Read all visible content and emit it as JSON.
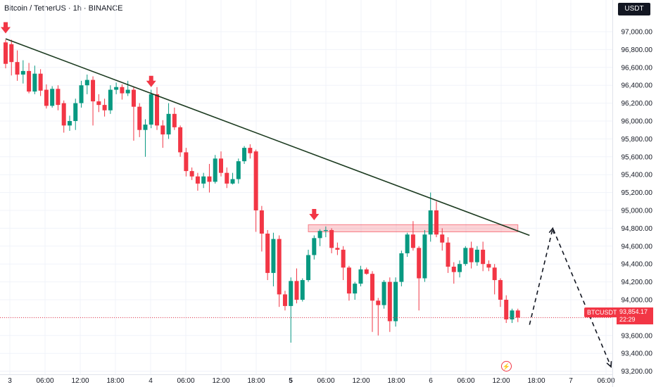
{
  "header": {
    "title": "Bitcoin / TetherUS · 1h · BINANCE"
  },
  "currency_badge": "USDT",
  "last_price": {
    "symbol": "BTCUSDT",
    "price": "93,854.17",
    "countdown": "22:29"
  },
  "colors": {
    "up": "#089981",
    "down": "#f23645",
    "trendline": "#1b3a1f",
    "zone": "#f23645",
    "text": "#131722"
  },
  "icons": [
    "down-arrow-marker-icon",
    "flash-icon"
  ],
  "chart_data": {
    "type": "candlestick",
    "title": "Bitcoin / TetherUS · 1h · BINANCE",
    "ylim": [
      93200,
      97100
    ],
    "y_ticks": [
      "97,000.00",
      "96,800.00",
      "96,600.00",
      "96,400.00",
      "96,200.00",
      "96,000.00",
      "95,800.00",
      "95,600.00",
      "95,400.00",
      "95,200.00",
      "95,000.00",
      "94,800.00",
      "94,600.00",
      "94,400.00",
      "94,200.00",
      "94,000.00",
      "93,800.00",
      "93,600.00",
      "93,400.00",
      "93,200.00"
    ],
    "x_ticks": [
      "3",
      "06:00",
      "12:00",
      "18:00",
      "4",
      "06:00",
      "12:00",
      "18:00",
      "5",
      "06:00",
      "12:00",
      "18:00",
      "6",
      "06:00",
      "12:00",
      "18:00",
      "7",
      "06:00"
    ],
    "x_ticks_bold": [
      "5"
    ],
    "grid": true,
    "candles": [
      [
        96880,
        96640,
        96910,
        96590
      ],
      [
        96860,
        96660,
        96910,
        96510
      ],
      [
        96660,
        96520,
        96790,
        96450
      ],
      [
        96520,
        96560,
        96680,
        96420
      ],
      [
        96560,
        96330,
        96650,
        96310
      ],
      [
        96330,
        96530,
        96620,
        96300
      ],
      [
        96530,
        96340,
        96580,
        96280
      ],
      [
        96350,
        96170,
        96410,
        96140
      ],
      [
        96170,
        96360,
        96390,
        96150
      ],
      [
        96360,
        96180,
        96400,
        96120
      ],
      [
        96200,
        95950,
        96230,
        95870
      ],
      [
        95950,
        96000,
        96060,
        95890
      ],
      [
        96000,
        96200,
        96250,
        95900
      ],
      [
        96200,
        96400,
        96450,
        96150
      ],
      [
        96400,
        96460,
        96520,
        96300
      ],
      [
        96460,
        96220,
        96500,
        95950
      ],
      [
        96220,
        96180,
        96300,
        96100
      ],
      [
        96180,
        96120,
        96250,
        96050
      ],
      [
        96120,
        96350,
        96400,
        96080
      ],
      [
        96350,
        96380,
        96430,
        96300
      ],
      [
        96380,
        96310,
        96410,
        96240
      ],
      [
        96310,
        96350,
        96450,
        96280
      ],
      [
        96350,
        96160,
        96380,
        95780
      ],
      [
        96160,
        95900,
        96200,
        95820
      ],
      [
        95900,
        95960,
        96020,
        95600
      ],
      [
        95960,
        96300,
        96350,
        95920
      ],
      [
        96300,
        95950,
        96380,
        95900
      ],
      [
        95950,
        95850,
        96010,
        95700
      ],
      [
        95850,
        96080,
        96200,
        95800
      ],
      [
        96080,
        95930,
        96150,
        95900
      ],
      [
        95930,
        95650,
        95950,
        95600
      ],
      [
        95650,
        95440,
        95700,
        95380
      ],
      [
        95440,
        95380,
        95480,
        95340
      ],
      [
        95380,
        95300,
        95420,
        95220
      ],
      [
        95300,
        95380,
        95420,
        95250
      ],
      [
        95380,
        95320,
        95520,
        95200
      ],
      [
        95320,
        95580,
        95620,
        95300
      ],
      [
        95580,
        95420,
        95660,
        95380
      ],
      [
        95420,
        95300,
        95480,
        95250
      ],
      [
        95300,
        95350,
        95420,
        95290
      ],
      [
        95350,
        95550,
        95580,
        95300
      ],
      [
        95550,
        95700,
        95720,
        95520
      ],
      [
        95700,
        95640,
        95740,
        95580
      ],
      [
        95660,
        95000,
        95680,
        94760
      ],
      [
        95000,
        94740,
        95050,
        94540
      ],
      [
        94740,
        94300,
        94780,
        94220
      ],
      [
        94300,
        94680,
        94750,
        94150
      ],
      [
        94680,
        94060,
        94720,
        93920
      ],
      [
        94060,
        93930,
        94100,
        93880
      ],
      [
        93930,
        94210,
        94250,
        93520
      ],
      [
        94210,
        94000,
        94350,
        93960
      ],
      [
        94000,
        94220,
        94240,
        93980
      ],
      [
        94220,
        94500,
        94560,
        94200
      ],
      [
        94500,
        94690,
        94720,
        94450
      ],
      [
        94690,
        94770,
        94790,
        94600
      ],
      [
        94770,
        94780,
        94820,
        94700
      ],
      [
        94780,
        94580,
        94800,
        94520
      ],
      [
        94580,
        94560,
        94640,
        94500
      ],
      [
        94560,
        94360,
        94600,
        94220
      ],
      [
        94360,
        94070,
        94380,
        93990
      ],
      [
        94070,
        94180,
        94200,
        94000
      ],
      [
        94180,
        94340,
        94380,
        94150
      ],
      [
        94340,
        94290,
        94360,
        94280
      ],
      [
        94290,
        93990,
        94320,
        93640
      ],
      [
        93990,
        93940,
        94020,
        93600
      ],
      [
        93940,
        94200,
        94220,
        93900
      ],
      [
        94200,
        93760,
        94250,
        93640
      ],
      [
        93760,
        94200,
        94250,
        93700
      ],
      [
        94200,
        94520,
        94550,
        94150
      ],
      [
        94520,
        94730,
        94750,
        94480
      ],
      [
        94730,
        94580,
        94880,
        94550
      ],
      [
        94580,
        94240,
        94600,
        93880
      ],
      [
        94240,
        94730,
        94780,
        94200
      ],
      [
        94730,
        95000,
        95200,
        94650
      ],
      [
        95000,
        94730,
        95100,
        94700
      ],
      [
        94730,
        94640,
        94800,
        94550
      ],
      [
        94640,
        94370,
        94700,
        94300
      ],
      [
        94370,
        94310,
        94420,
        94180
      ],
      [
        94310,
        94400,
        94440,
        94250
      ],
      [
        94400,
        94580,
        94600,
        94380
      ],
      [
        94580,
        94420,
        94650,
        94350
      ],
      [
        94420,
        94560,
        94600,
        94380
      ],
      [
        94560,
        94400,
        94650,
        94320
      ],
      [
        94400,
        94360,
        94440,
        94320
      ],
      [
        94360,
        94220,
        94400,
        94060
      ],
      [
        94220,
        94000,
        94240,
        93920
      ],
      [
        94000,
        93780,
        94050,
        93740
      ],
      [
        93780,
        93880,
        93900,
        93740
      ],
      [
        93880,
        93800,
        93900,
        93750
      ]
    ],
    "trendline": [
      [
        0,
        96920
      ],
      [
        90,
        94720
      ]
    ],
    "resistance_zone": {
      "y0": 94760,
      "y1": 94840,
      "x0": 52,
      "x1": 88
    },
    "down_markers": [
      [
        0,
        96980
      ],
      [
        25,
        96380
      ],
      [
        53,
        94890
      ]
    ],
    "projection": [
      [
        90,
        93720
      ],
      [
        94,
        94800
      ],
      [
        104,
        93250
      ]
    ]
  }
}
